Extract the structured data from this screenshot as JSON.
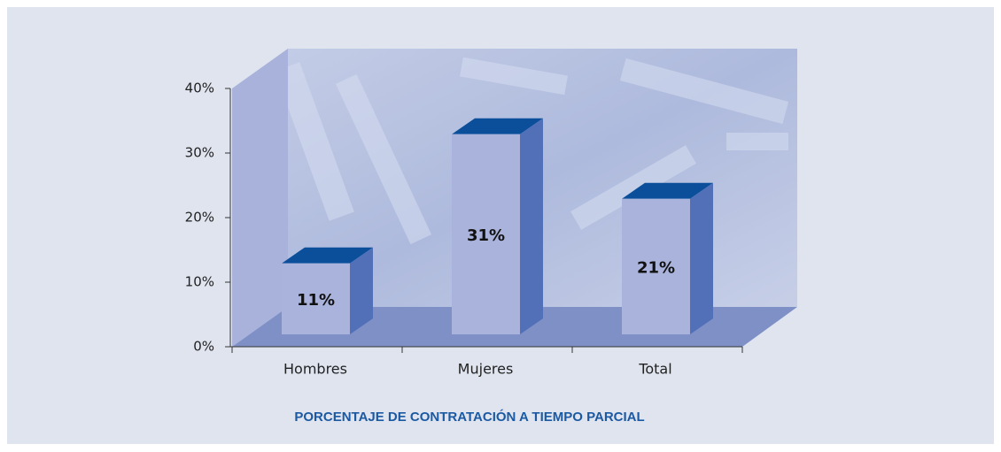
{
  "chart_data": {
    "type": "bar3d",
    "title": "PORCENTAJE DE CONTRATACIÓN A TIEMPO PARCIAL",
    "categories": [
      "Hombres",
      "Mujeres",
      "Total"
    ],
    "values": [
      11,
      31,
      21
    ],
    "value_labels": [
      "11%",
      "31%",
      "21%"
    ],
    "colors": {
      "front": "#a9b3dc",
      "top": "#0b4f9b",
      "side": "#5270b7"
    },
    "ylim": [
      0,
      40
    ],
    "yticks": [
      {
        "value": 0,
        "label": "0%"
      },
      {
        "value": 10,
        "label": "10%"
      },
      {
        "value": 20,
        "label": "20%"
      },
      {
        "value": 30,
        "label": "30%"
      },
      {
        "value": 40,
        "label": "40%"
      }
    ]
  }
}
